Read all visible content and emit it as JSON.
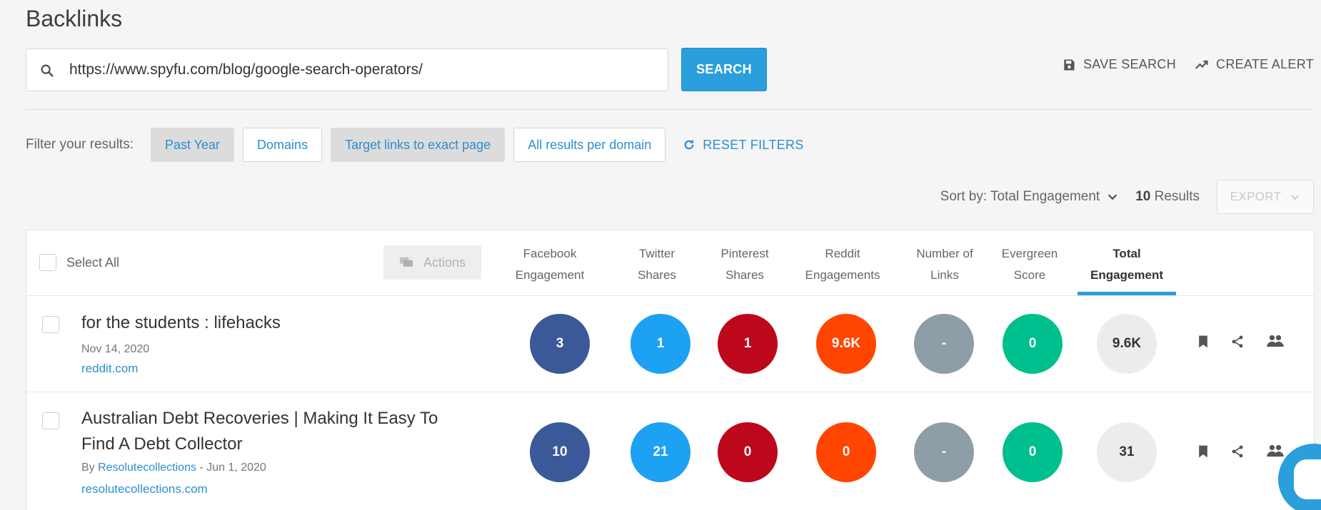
{
  "page": {
    "title": "Backlinks"
  },
  "search": {
    "value": "https://www.spyfu.com/blog/google-search-operators/",
    "button_label": "SEARCH"
  },
  "top_actions": {
    "save_search": "SAVE SEARCH",
    "create_alert": "CREATE ALERT"
  },
  "filters": {
    "label": "Filter your results:",
    "chips": [
      {
        "label": "Past Year",
        "active": true
      },
      {
        "label": "Domains",
        "active": false
      },
      {
        "label": "Target links to exact page",
        "active": true
      },
      {
        "label": "All results per domain",
        "active": false
      }
    ],
    "reset_label": "RESET FILTERS"
  },
  "sort": {
    "label": "Sort by: Total Engagement",
    "results_count": "10",
    "results_suffix": " Results",
    "export_label": "EXPORT"
  },
  "table": {
    "select_all": "Select All",
    "actions_label": "Actions",
    "columns": [
      {
        "line1": "Facebook",
        "line2": "Engagement"
      },
      {
        "line1": "Twitter",
        "line2": "Shares"
      },
      {
        "line1": "Pinterest",
        "line2": "Shares"
      },
      {
        "line1": "Reddit",
        "line2": "Engagements"
      },
      {
        "line1": "Number of",
        "line2": "Links"
      },
      {
        "line1": "Evergreen",
        "line2": "Score"
      },
      {
        "line1": "Total",
        "line2": "Engagement"
      }
    ],
    "rows": [
      {
        "title": "for the students : lifehacks",
        "date": "Nov 14, 2020",
        "domain": "reddit.com",
        "metrics": [
          "3",
          "1",
          "1",
          "9.6K",
          "-",
          "0",
          "9.6K"
        ]
      },
      {
        "title_line1": "Australian Debt Recoveries | Making It Easy To",
        "title_line2": "Find A Debt Collector",
        "by_prefix": "By ",
        "author": "Resolutecollections",
        "date": " - Jun 1, 2020",
        "domain": "resolutecollections.com",
        "metrics": [
          "10",
          "21",
          "0",
          "0",
          "-",
          "0",
          "31"
        ]
      }
    ]
  },
  "colors": {
    "accent": "#2a9fdc",
    "facebook": "#3b5998",
    "twitter": "#1da1f2",
    "pinterest": "#bd081c",
    "reddit": "#ff4500",
    "links": "#8e9ea6",
    "evergreen": "#00bf8f",
    "total": "#ececec"
  }
}
